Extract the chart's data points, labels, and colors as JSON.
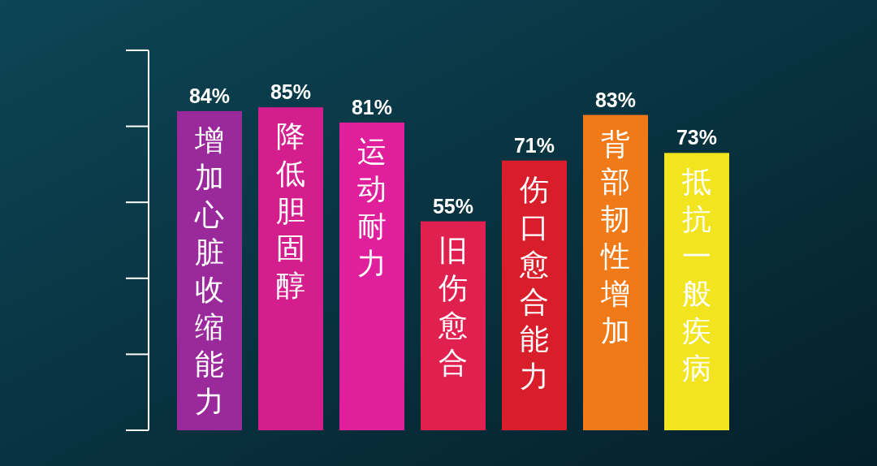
{
  "chart_data": {
    "type": "bar",
    "categories": [
      "增加心脏收缩能力",
      "降低胆固醇",
      "运动耐力",
      "旧伤愈合",
      "伤口愈合能力",
      "背部韧性增加",
      "抵抗一般疾病"
    ],
    "values": [
      84,
      85,
      81,
      55,
      71,
      83,
      73
    ],
    "value_labels": [
      "84%",
      "85%",
      "81%",
      "55%",
      "71%",
      "83%",
      "73%"
    ],
    "colors": [
      "#9a2a9c",
      "#d41e8e",
      "#e01f9c",
      "#e0204e",
      "#d81e2a",
      "#f07a18",
      "#f2e41e"
    ],
    "tick_labels": "x",
    "grid": false
  }
}
